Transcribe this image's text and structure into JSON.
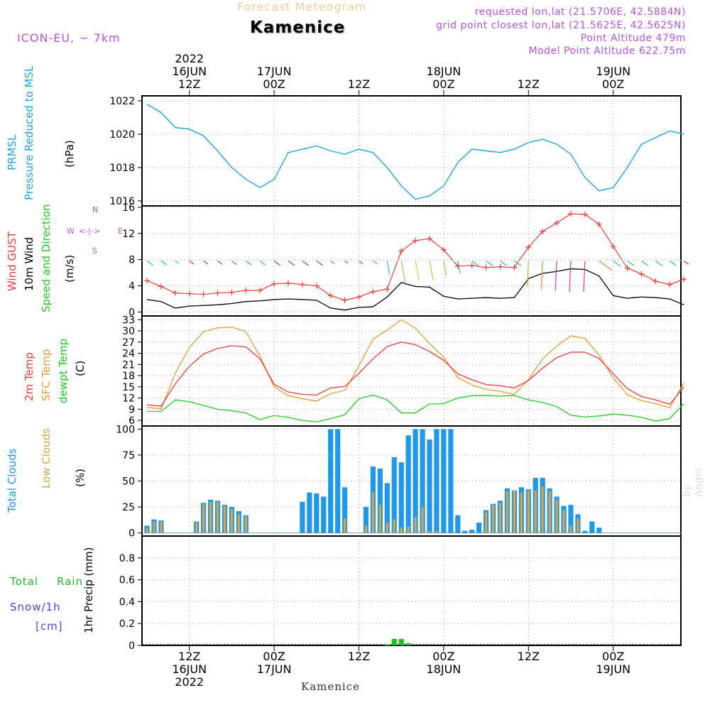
{
  "header": {
    "faded_title": "Forecast Meteogram",
    "location": "Kamenice",
    "model": "ICON-EU, ~ 7km",
    "requested": "requested lon,lat (21.5706E, 42.5884N)",
    "grid_point": "grid point closest lon,lat (21.5625E, 42.5625N)",
    "point_altitude": "Point Altitude 479m",
    "model_altitude": "Model Point Altitude 622.75m"
  },
  "footer": {
    "location": "Kamenice",
    "watermark": "by Angel"
  },
  "colors": {
    "pressure": "#1fa3ea",
    "gust": "#ee3b3b",
    "wind": "#000000",
    "temp": "#ee3b3b",
    "sfc": "#e0a030",
    "dewpt": "#22cc22",
    "total_cloud": "#1f97ea",
    "low_cloud": "#d9a441",
    "rain": "#22bb22",
    "snow": "#4444ee",
    "purple": "#b455dd"
  },
  "chart_data": [
    {
      "type": "line",
      "title": "Pressure",
      "ylabel_lines": [
        "PRMSL",
        "Pressure Reduced to MSL",
        "(hPa)"
      ],
      "x_hours": [
        0,
        2,
        4,
        6,
        8,
        10,
        12,
        14,
        16,
        18,
        20,
        22,
        24,
        26,
        28,
        30,
        32,
        34,
        36,
        38,
        40,
        42,
        44,
        46,
        48,
        50,
        52,
        54,
        56,
        58,
        60,
        62,
        64,
        66,
        68,
        70,
        72,
        74,
        76
      ],
      "ylim": [
        1015.7,
        1022.3
      ],
      "yticks": [
        1016,
        1018,
        1020,
        1022
      ],
      "series": [
        {
          "name": "PRMSL",
          "values": [
            1021.8,
            1021.3,
            1020.4,
            1020.3,
            1019.9,
            1019.0,
            1018.0,
            1017.3,
            1016.8,
            1017.3,
            1018.9,
            1019.1,
            1019.3,
            1019.0,
            1018.8,
            1019.1,
            1018.9,
            1018.0,
            1016.9,
            1016.1,
            1016.3,
            1016.9,
            1018.3,
            1019.1,
            1019.0,
            1018.9,
            1019.1,
            1019.5,
            1019.7,
            1019.4,
            1018.8,
            1017.4,
            1016.6,
            1016.8,
            1018.0,
            1019.4,
            1019.8,
            1020.2,
            1020.0
          ]
        }
      ]
    },
    {
      "type": "line",
      "title": "Wind",
      "ylabel_lines": [
        "Wind GUST",
        "10m Wind",
        "Speed and Direction",
        "(m/s)"
      ],
      "compass": [
        "N",
        "S",
        "W",
        "E",
        "<-|->"
      ],
      "x_hours": [
        0,
        2,
        4,
        6,
        8,
        10,
        12,
        14,
        16,
        18,
        20,
        22,
        24,
        26,
        28,
        30,
        32,
        34,
        36,
        38,
        40,
        42,
        44,
        46,
        48,
        50,
        52,
        54,
        56,
        58,
        60,
        62,
        64,
        66,
        68,
        70,
        72,
        74,
        76
      ],
      "ylim": [
        -0.6,
        16.2
      ],
      "yticks": [
        0,
        4,
        8,
        12,
        16
      ],
      "series": [
        {
          "name": "Wind GUST",
          "values": [
            4.8,
            3.9,
            2.9,
            2.8,
            2.7,
            2.9,
            3.0,
            3.3,
            3.3,
            4.3,
            4.4,
            4.2,
            4.0,
            2.5,
            1.8,
            2.3,
            3.1,
            3.5,
            9.3,
            10.9,
            11.2,
            9.5,
            7.0,
            7.1,
            6.8,
            6.9,
            6.8,
            9.9,
            12.3,
            13.6,
            15.0,
            14.9,
            13.4,
            10.0,
            6.7,
            5.8,
            4.7,
            4.2,
            5.0
          ]
        },
        {
          "name": "10m Wind",
          "values": [
            1.9,
            1.6,
            0.6,
            0.9,
            1.0,
            1.1,
            1.3,
            1.6,
            1.7,
            1.9,
            2.0,
            1.9,
            1.8,
            0.6,
            0.3,
            0.7,
            0.8,
            2.3,
            4.5,
            3.9,
            3.8,
            2.4,
            2.0,
            2.1,
            2.2,
            2.1,
            2.2,
            5.1,
            5.9,
            6.2,
            6.6,
            6.5,
            5.5,
            2.5,
            2.1,
            2.3,
            2.2,
            2.0,
            1.1
          ]
        }
      ]
    },
    {
      "type": "line",
      "title": "Temperature",
      "ylabel_lines": [
        "2m Temp",
        "SFC Temp",
        "dewpt Temp",
        "(C)"
      ],
      "x_hours": [
        0,
        2,
        4,
        6,
        8,
        10,
        12,
        14,
        16,
        18,
        20,
        22,
        24,
        26,
        28,
        30,
        32,
        34,
        36,
        38,
        40,
        42,
        44,
        46,
        48,
        50,
        52,
        54,
        56,
        58,
        60,
        62,
        64,
        66,
        68,
        70,
        72,
        74,
        76
      ],
      "ylim": [
        4.5,
        34
      ],
      "yticks": [
        6,
        9,
        12,
        15,
        18,
        21,
        24,
        27,
        30,
        33
      ],
      "series": [
        {
          "name": "2m Temp",
          "values": [
            10.2,
            9.8,
            15.8,
            20.5,
            23.8,
            25.3,
            26.0,
            25.7,
            22.5,
            15.7,
            13.6,
            13.0,
            12.8,
            14.7,
            15.1,
            18.6,
            22.5,
            25.8,
            27.0,
            26.3,
            24.5,
            22.1,
            18.5,
            16.9,
            15.6,
            15.3,
            14.7,
            16.7,
            20.0,
            22.8,
            24.3,
            24.3,
            22.6,
            18.5,
            14.5,
            12.4,
            11.5,
            10.3,
            15.0
          ]
        },
        {
          "name": "SFC Temp",
          "values": [
            9.5,
            9.1,
            18.6,
            25.5,
            29.8,
            30.8,
            31.0,
            29.8,
            23.2,
            15.0,
            12.6,
            11.8,
            11.2,
            13.2,
            14.0,
            20.6,
            27.8,
            30.2,
            33.0,
            30.7,
            26.6,
            23.0,
            17.5,
            15.5,
            14.3,
            13.8,
            13.0,
            16.9,
            22.5,
            25.9,
            28.7,
            28.0,
            23.5,
            17.4,
            12.9,
            11.3,
            10.5,
            9.4,
            16.0
          ]
        },
        {
          "name": "dewpt Temp",
          "values": [
            8.4,
            8.4,
            11.5,
            11.0,
            10.0,
            9.0,
            8.6,
            8.0,
            6.2,
            7.3,
            6.8,
            6.0,
            5.6,
            6.5,
            7.5,
            11.8,
            12.8,
            11.5,
            8.0,
            8.0,
            10.4,
            10.5,
            12.0,
            12.6,
            12.7,
            12.5,
            12.7,
            11.5,
            10.8,
            9.7,
            7.4,
            6.9,
            7.2,
            7.7,
            7.4,
            6.8,
            5.8,
            6.5,
            10.5
          ]
        }
      ]
    },
    {
      "type": "bar",
      "title": "Clouds",
      "ylabel_lines": [
        "Total Clouds",
        "Low Clouds",
        "(%)"
      ],
      "x_hours": [
        0,
        1,
        2,
        3,
        4,
        5,
        6,
        7,
        8,
        9,
        10,
        11,
        12,
        13,
        14,
        15,
        16,
        17,
        18,
        19,
        20,
        21,
        22,
        23,
        24,
        25,
        26,
        27,
        28,
        29,
        30,
        31,
        32,
        33,
        34,
        35,
        36,
        37,
        38,
        39,
        40,
        41,
        42,
        43,
        44,
        45,
        46,
        47,
        48,
        49,
        50,
        51,
        52,
        53,
        54,
        55,
        56,
        57,
        58,
        59,
        60,
        61,
        62,
        63,
        64,
        65,
        66,
        67,
        68,
        69,
        70,
        71,
        72,
        73,
        74,
        75,
        76
      ],
      "ylim": [
        -3,
        103
      ],
      "yticks": [
        0,
        25,
        50,
        75,
        100
      ],
      "series": [
        {
          "name": "Total Clouds",
          "values": [
            7,
            13,
            12,
            0,
            0,
            0,
            0,
            11,
            29,
            32,
            31,
            27,
            25,
            21,
            17,
            0,
            0,
            0,
            0,
            0,
            0,
            0,
            30,
            39,
            38,
            35,
            100,
            100,
            44,
            0,
            0,
            25,
            64,
            62,
            48,
            73,
            68,
            94,
            100,
            100,
            90,
            100,
            100,
            100,
            17,
            2,
            3,
            10,
            22,
            28,
            31,
            43,
            41,
            44,
            42,
            53,
            53,
            43,
            35,
            26,
            27,
            18,
            2,
            11,
            5,
            0,
            0,
            0,
            0,
            0,
            0,
            0,
            0,
            0,
            0,
            0,
            0
          ]
        },
        {
          "name": "Low Clouds",
          "values": [
            5,
            11,
            11,
            0,
            0,
            0,
            0,
            10,
            28,
            30,
            30,
            26,
            23,
            18,
            16,
            0,
            0,
            0,
            0,
            0,
            0,
            0,
            0,
            0,
            0,
            0,
            0,
            0,
            14,
            0,
            0,
            7,
            39,
            27,
            10,
            13,
            5,
            6,
            15,
            25,
            2,
            2,
            0,
            0,
            0,
            0,
            0,
            0,
            20,
            27,
            29,
            40,
            41,
            39,
            41,
            41,
            45,
            40,
            32,
            22,
            7,
            14,
            0,
            0,
            0,
            0,
            0,
            0,
            0,
            0,
            0,
            0,
            0,
            0,
            0,
            0,
            0
          ]
        }
      ]
    },
    {
      "type": "bar",
      "title": "Precipitation",
      "ylabel_lines": [
        "1hr Precip (mm)"
      ],
      "legend": [
        "Total",
        "Rain",
        "Snow/1h",
        "[cm]"
      ],
      "x_hours": [
        34,
        35,
        36,
        37
      ],
      "ylim": [
        0,
        1.0
      ],
      "yticks": [
        "0",
        "0.2",
        "0.4",
        "0.6",
        "0.8"
      ],
      "series": [
        {
          "name": "Rain",
          "values": [
            0.01,
            0.06,
            0.06,
            0.02
          ]
        }
      ]
    }
  ],
  "time_axis": {
    "top_labels": [
      {
        "hour": 6,
        "lines": [
          "2022",
          "16JUN",
          "12Z"
        ]
      },
      {
        "hour": 18,
        "lines": [
          "17JUN",
          "00Z"
        ]
      },
      {
        "hour": 30,
        "lines": [
          "12Z"
        ]
      },
      {
        "hour": 42,
        "lines": [
          "18JUN",
          "00Z"
        ]
      },
      {
        "hour": 54,
        "lines": [
          "12Z"
        ]
      },
      {
        "hour": 66,
        "lines": [
          "19JUN",
          "00Z"
        ]
      }
    ],
    "bottom_labels": [
      {
        "hour": 6,
        "lines": [
          "12Z",
          "16JUN",
          "2022"
        ]
      },
      {
        "hour": 18,
        "lines": [
          "00Z",
          "17JUN"
        ]
      },
      {
        "hour": 30,
        "lines": [
          "12Z"
        ]
      },
      {
        "hour": 42,
        "lines": [
          "00Z",
          "18JUN"
        ]
      },
      {
        "hour": 54,
        "lines": [
          "12Z"
        ]
      },
      {
        "hour": 66,
        "lines": [
          "00Z",
          "19JUN"
        ]
      }
    ]
  }
}
